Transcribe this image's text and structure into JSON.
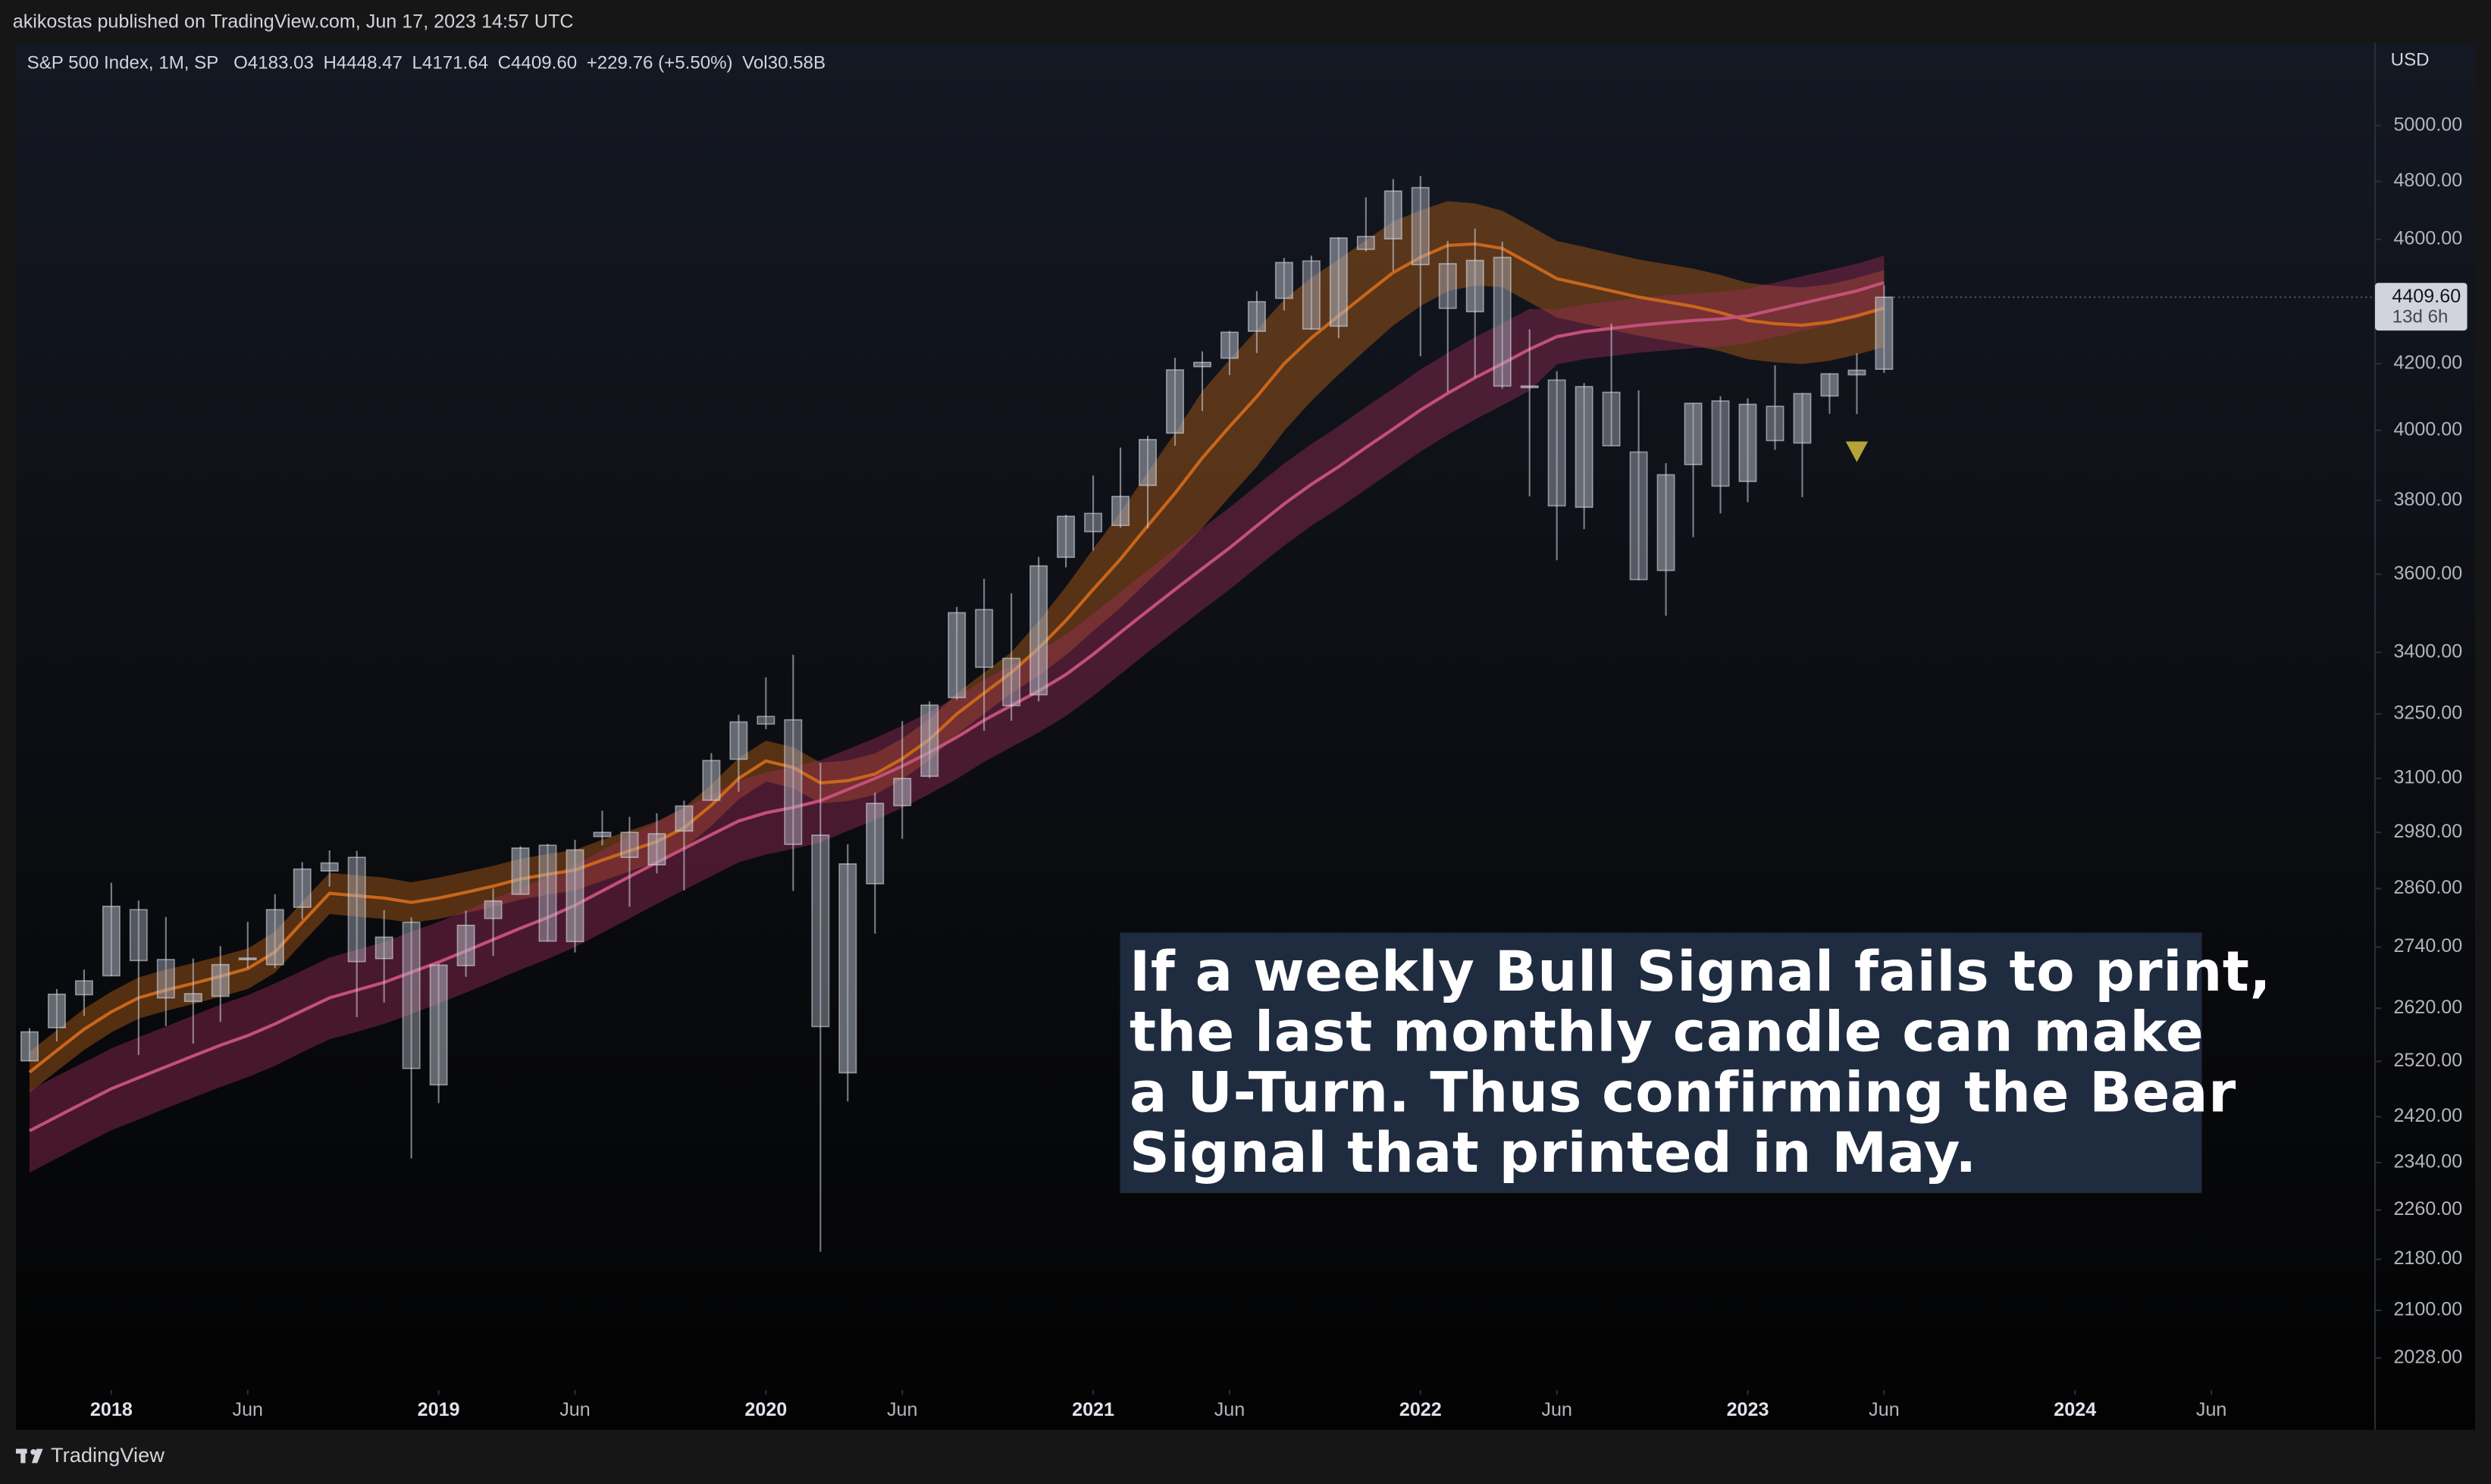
{
  "header": "akikostas published on TradingView.com, Jun 17, 2023 14:57 UTC",
  "footer": "TradingView",
  "chart_data": {
    "type": "candlestick",
    "title": "S&P 500 Index, 1M, SP",
    "legend": [
      "O4183.03",
      "H4448.47",
      "L4171.64",
      "C4409.60",
      "+229.76 (+5.50%)",
      "Vol30.58B"
    ],
    "currency": "USD",
    "log_scale": true,
    "grid": false,
    "up_color": "rgba(175,180,192,0.55)",
    "down_color": "rgba(175,180,192,0.45)",
    "open": [
      2521,
      2583,
      2646,
      2683,
      2816,
      2715,
      2633,
      2643,
      2718,
      2705,
      2821,
      2897,
      2926,
      2717,
      2790,
      2477,
      2703,
      2798,
      2848,
      2952,
      2751,
      2971,
      2980,
      2910,
      2983,
      3051,
      3144,
      3244,
      3236,
      2974,
      2499,
      2870,
      3039,
      3105,
      3289,
      3508,
      3385,
      3296,
      3645,
      3764,
      3731,
      3842,
      3992,
      4191,
      4217,
      4301,
      4406,
      4528,
      4317,
      4610,
      4602,
      4778,
      4519,
      4363,
      4540,
      4131,
      4150,
      3781,
      4113,
      3937,
      3610,
      3901,
      4087,
      3853,
      4071,
      3963,
      4102,
      4166,
      4183.03
    ],
    "high": [
      2582,
      2657,
      2695,
      2872,
      2835,
      2801,
      2717,
      2742,
      2791,
      2848,
      2916,
      2941,
      2940,
      2815,
      2800,
      2708,
      2814,
      2860,
      2950,
      2955,
      2964,
      3028,
      3014,
      3022,
      3050,
      3158,
      3248,
      3338,
      3394,
      3136,
      2954,
      3068,
      3233,
      3280,
      3515,
      3588,
      3550,
      3646,
      3760,
      3870,
      3950,
      3984,
      4218,
      4238,
      4302,
      4429,
      4538,
      4546,
      4608,
      4744,
      4808,
      4819,
      4595,
      4637,
      4593,
      4307,
      4177,
      4141,
      4325,
      4119,
      3905,
      4080,
      4101,
      4095,
      4195,
      4111,
      4170,
      4232,
      4448.47
    ],
    "low": [
      2520,
      2557,
      2605,
      2682,
      2532,
      2586,
      2553,
      2594,
      2698,
      2698,
      2796,
      2864,
      2603,
      2631,
      2347,
      2444,
      2681,
      2722,
      2848,
      2751,
      2729,
      2952,
      2822,
      2892,
      2856,
      3050,
      3070,
      3214,
      2855,
      2192,
      2447,
      2767,
      2966,
      3101,
      3284,
      3210,
      3234,
      3280,
      3618,
      3663,
      3725,
      3723,
      3955,
      4057,
      4165,
      4233,
      4367,
      4306,
      4279,
      4560,
      4495,
      4223,
      4115,
      4157,
      4124,
      3811,
      3637,
      3721,
      3955,
      3584,
      3492,
      3699,
      3764,
      3795,
      3943,
      3809,
      4049,
      4048,
      4171.64
    ],
    "close": [
      2575,
      2647,
      2673,
      2823,
      2713,
      2640,
      2648,
      2705,
      2718,
      2816,
      2901,
      2914,
      2711,
      2760,
      2507,
      2704,
      2784,
      2834,
      2946,
      2752,
      2942,
      2980,
      2926,
      2977,
      3038,
      3141,
      3231,
      3226,
      2954,
      2585,
      2912,
      3044,
      3100,
      3271,
      3500,
      3363,
      3270,
      3622,
      3756,
      3714,
      3811,
      3973,
      4181,
      4204,
      4298,
      4395,
      4523,
      4308,
      4605,
      4567,
      4766,
      4516,
      4374,
      4530,
      4132,
      4132,
      3785,
      4130,
      3955,
      3586,
      3872,
      4080,
      3840,
      4077,
      3970,
      4109,
      4169,
      4180,
      4409.6
    ],
    "bands": [
      {
        "color": "#c8661a",
        "fill": "rgba(190,100,25,0.42)",
        "values": [
          2500,
          2540,
          2580,
          2613,
          2640,
          2655,
          2668,
          2682,
          2697,
          2730,
          2790,
          2850,
          2845,
          2840,
          2831,
          2840,
          2852,
          2865,
          2880,
          2890,
          2899,
          2920,
          2940,
          2960,
          2990,
          3040,
          3100,
          3140,
          3125,
          3090,
          3095,
          3110,
          3145,
          3190,
          3250,
          3300,
          3350,
          3410,
          3480,
          3560,
          3640,
          3730,
          3820,
          3920,
          4011,
          4100,
          4200,
          4280,
          4350,
          4420,
          4490,
          4540,
          4580,
          4585,
          4570,
          4520,
          4470,
          4450,
          4430,
          4410,
          4395,
          4380,
          4360,
          4335,
          4325,
          4320,
          4330,
          4350,
          4375
        ],
        "upper": [
          2538,
          2578,
          2619,
          2652,
          2680,
          2695,
          2708,
          2722,
          2737,
          2771,
          2832,
          2893,
          2888,
          2883,
          2873,
          2883,
          2895,
          2908,
          2923,
          2933,
          2942,
          2964,
          2984,
          3004,
          3035,
          3086,
          3147,
          3187,
          3172,
          3136,
          3141,
          3157,
          3192,
          3238,
          3299,
          3350,
          3400,
          3478,
          3567,
          3667,
          3767,
          3879,
          3992,
          4116,
          4212,
          4305,
          4402,
          4473,
          4533,
          4597,
          4661,
          4699,
          4731,
          4723,
          4698,
          4647,
          4595,
          4575,
          4554,
          4533,
          4518,
          4503,
          4482,
          4456,
          4446,
          4441,
          4451,
          4472,
          4498
        ],
        "lower": [
          2463,
          2502,
          2541,
          2574,
          2600,
          2615,
          2628,
          2642,
          2657,
          2689,
          2748,
          2807,
          2802,
          2797,
          2789,
          2797,
          2809,
          2822,
          2837,
          2847,
          2856,
          2876,
          2896,
          2916,
          2945,
          2994,
          3053,
          3093,
          3078,
          3044,
          3049,
          3063,
          3098,
          3142,
          3201,
          3250,
          3300,
          3342,
          3393,
          3453,
          3513,
          3581,
          3648,
          3724,
          3810,
          3895,
          3998,
          4087,
          4167,
          4243,
          4319,
          4381,
          4429,
          4447,
          4442,
          4393,
          4345,
          4325,
          4306,
          4287,
          4272,
          4257,
          4238,
          4214,
          4204,
          4199,
          4209,
          4228,
          4252
        ]
      },
      {
        "color": "#c2507a",
        "fill": "rgba(160,45,90,0.42)",
        "values": [
          2395,
          2420,
          2445,
          2470,
          2490,
          2510,
          2530,
          2550,
          2568,
          2590,
          2615,
          2640,
          2655,
          2670,
          2690,
          2710,
          2732,
          2755,
          2778,
          2800,
          2825,
          2855,
          2885,
          2915,
          2945,
          2975,
          3005,
          3023,
          3035,
          3050,
          3075,
          3100,
          3128,
          3160,
          3195,
          3235,
          3270,
          3305,
          3345,
          3395,
          3450,
          3505,
          3560,
          3615,
          3670,
          3730,
          3790,
          3845,
          3895,
          3950,
          4004,
          4060,
          4110,
          4157,
          4200,
          4245,
          4284,
          4300,
          4310,
          4320,
          4328,
          4335,
          4340,
          4350,
          4370,
          4390,
          4410,
          4430,
          4457
        ],
        "upper": [
          2467,
          2493,
          2518,
          2544,
          2565,
          2585,
          2606,
          2627,
          2645,
          2668,
          2693,
          2719,
          2735,
          2750,
          2771,
          2791,
          2814,
          2838,
          2861,
          2884,
          2910,
          2941,
          2972,
          3002,
          3033,
          3064,
          3095,
          3114,
          3126,
          3142,
          3167,
          3193,
          3222,
          3255,
          3291,
          3332,
          3368,
          3404,
          3445,
          3497,
          3554,
          3610,
          3667,
          3723,
          3780,
          3842,
          3904,
          3960,
          4012,
          4069,
          4124,
          4182,
          4233,
          4282,
          4326,
          4372,
          4370,
          4386,
          4396,
          4406,
          4415,
          4422,
          4427,
          4437,
          4457,
          4478,
          4498,
          4519,
          4546
        ],
        "lower": [
          2323,
          2347,
          2372,
          2396,
          2415,
          2435,
          2454,
          2473,
          2491,
          2512,
          2537,
          2561,
          2575,
          2590,
          2609,
          2629,
          2650,
          2672,
          2695,
          2716,
          2740,
          2769,
          2798,
          2828,
          2857,
          2886,
          2915,
          2932,
          2944,
          2958,
          2983,
          3007,
          3034,
          3065,
          3099,
          3138,
          3172,
          3206,
          3245,
          3293,
          3346,
          3400,
          3453,
          3507,
          3560,
          3618,
          3676,
          3730,
          3778,
          3831,
          3884,
          3938,
          3987,
          4032,
          4074,
          4118,
          4198,
          4214,
          4224,
          4234,
          4241,
          4248,
          4253,
          4263,
          4283,
          4302,
          4322,
          4341,
          4368
        ]
      }
    ],
    "signal": {
      "index": 67,
      "value": 3940,
      "color": "#b5a33a"
    },
    "last_price": {
      "value": 4409.6,
      "label": "4409.60",
      "countdown": "13d 6h"
    },
    "xlim": [
      -0.5,
      86
    ],
    "xticks": [
      {
        "value": 3,
        "label": "2018"
      },
      {
        "value": 8,
        "label": "Jun"
      },
      {
        "value": 15,
        "label": "2019"
      },
      {
        "value": 20,
        "label": "Jun"
      },
      {
        "value": 27,
        "label": "2020"
      },
      {
        "value": 32,
        "label": "Jun"
      },
      {
        "value": 39,
        "label": "2021"
      },
      {
        "value": 44,
        "label": "Jun"
      },
      {
        "value": 51,
        "label": "2022"
      },
      {
        "value": 56,
        "label": "Jun"
      },
      {
        "value": 63,
        "label": "2023"
      },
      {
        "value": 68,
        "label": "Jun"
      },
      {
        "value": 75,
        "label": "2024"
      },
      {
        "value": 80,
        "label": "Jun"
      }
    ],
    "ylim": [
      1981,
      5305
    ],
    "yticks": [
      {
        "value": 5000,
        "label": "5000.00"
      },
      {
        "value": 4800,
        "label": "4800.00"
      },
      {
        "value": 4600,
        "label": "4600.00"
      },
      {
        "value": 4200,
        "label": "4200.00"
      },
      {
        "value": 4000,
        "label": "4000.00"
      },
      {
        "value": 3800,
        "label": "3800.00"
      },
      {
        "value": 3600,
        "label": "3600.00"
      },
      {
        "value": 3400,
        "label": "3400.00"
      },
      {
        "value": 3250,
        "label": "3250.00"
      },
      {
        "value": 3100,
        "label": "3100.00"
      },
      {
        "value": 2980,
        "label": "2980.00"
      },
      {
        "value": 2860,
        "label": "2860.00"
      },
      {
        "value": 2740,
        "label": "2740.00"
      },
      {
        "value": 2620,
        "label": "2620.00"
      },
      {
        "value": 2520,
        "label": "2520.00"
      },
      {
        "value": 2420,
        "label": "2420.00"
      },
      {
        "value": 2340,
        "label": "2340.00"
      },
      {
        "value": 2260,
        "label": "2260.00"
      },
      {
        "value": 2180,
        "label": "2180.00"
      },
      {
        "value": 2100,
        "label": "2100.00"
      },
      {
        "value": 2028,
        "label": "2028.00"
      }
    ],
    "annotation": {
      "background": "#1f2b3f",
      "lines": [
        "If a weekly Bull Signal fails to print,",
        "the last monthly candle can make",
        "a U-Turn. Thus confirming the Bear",
        "Signal that printed in May."
      ]
    }
  }
}
